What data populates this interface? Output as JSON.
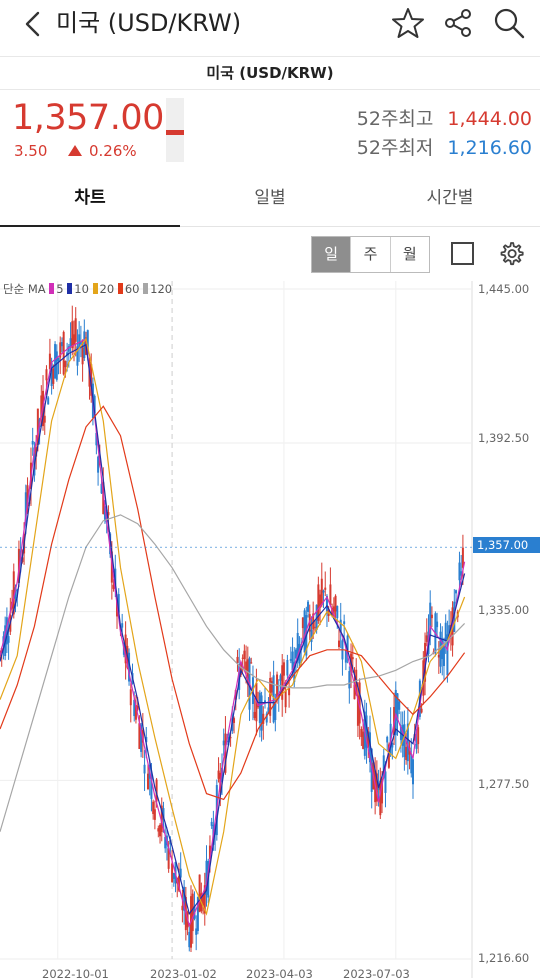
{
  "header": {
    "title": "미국 (USD/KRW)",
    "subtitle": "미국 (USD/KRW)",
    "icons": [
      "back-chevron-icon",
      "star-icon",
      "share-icon",
      "search-icon"
    ]
  },
  "quote": {
    "price": "1,357.00",
    "change": "3.50",
    "change_pct": "0.26%",
    "high_label": "52주최고",
    "high_value": "1,444.00",
    "low_label": "52주최저",
    "low_value": "1,216.60",
    "up_color": "#d63a30",
    "down_color": "#2a7fd0"
  },
  "tabs": [
    {
      "label": "차트",
      "active": true
    },
    {
      "label": "일별",
      "active": false
    },
    {
      "label": "시간별",
      "active": false
    }
  ],
  "period_buttons": [
    "일",
    "주",
    "월"
  ],
  "selected_period": "일",
  "chart": {
    "legend_title": "단순 MA",
    "ma": [
      {
        "label": "5",
        "color": "#d12fb8"
      },
      {
        "label": "10",
        "color": "#1f2fa6"
      },
      {
        "label": "20",
        "color": "#e3a51a"
      },
      {
        "label": "60",
        "color": "#e23a1a"
      },
      {
        "label": "120",
        "color": "#a6a6a6"
      }
    ],
    "y_ticks": [
      "1,445.00",
      "1,392.50",
      "1,335.00",
      "1,277.50",
      "1,216.60"
    ],
    "current_value": "1,357.00",
    "x_ticks": [
      "2022-10-01",
      "2023-01-02",
      "2023-04-03",
      "2023-07-03"
    ]
  },
  "chart_data": {
    "type": "line",
    "title": "",
    "xlabel": "",
    "ylabel": "",
    "ylim": [
      1216.6,
      1445.0
    ],
    "y_ticks": [
      1445.0,
      1392.5,
      1335.0,
      1277.5,
      1216.6
    ],
    "x_ticks": [
      "2022-10-01",
      "2023-01-02",
      "2023-04-03",
      "2023-07-03"
    ],
    "current": 1357.0,
    "grid": true,
    "legend": "top-left",
    "series": [
      {
        "name": "5",
        "x": [
          "2022-08-15",
          "2022-08-29",
          "2022-09-12",
          "2022-09-26",
          "2022-10-10",
          "2022-10-24",
          "2022-11-07",
          "2022-11-21",
          "2022-12-05",
          "2022-12-19",
          "2023-01-02",
          "2023-01-16",
          "2023-01-30",
          "2023-02-13",
          "2023-02-27",
          "2023-03-13",
          "2023-03-27",
          "2023-04-10",
          "2023-04-24",
          "2023-05-08",
          "2023-05-22",
          "2023-06-05",
          "2023-06-19",
          "2023-07-03",
          "2023-07-17",
          "2023-07-31",
          "2023-08-14",
          "2023-08-28"
        ],
        "values": [
          1320,
          1345,
          1390,
          1420,
          1425,
          1428,
          1375,
          1328,
          1300,
          1272,
          1250,
          1228,
          1242,
          1285,
          1318,
          1303,
          1305,
          1315,
          1332,
          1340,
          1325,
          1300,
          1270,
          1300,
          1285,
          1330,
          1322,
          1352
        ]
      },
      {
        "name": "10",
        "x": [
          "2022-08-15",
          "2022-08-29",
          "2022-09-12",
          "2022-09-26",
          "2022-10-10",
          "2022-10-24",
          "2022-11-07",
          "2022-11-21",
          "2022-12-05",
          "2022-12-19",
          "2023-01-02",
          "2023-01-16",
          "2023-01-30",
          "2023-02-13",
          "2023-02-27",
          "2023-03-13",
          "2023-03-27",
          "2023-04-10",
          "2023-04-24",
          "2023-05-08",
          "2023-05-22",
          "2023-06-05",
          "2023-06-19",
          "2023-07-03",
          "2023-07-17",
          "2023-07-31",
          "2023-08-14",
          "2023-08-28"
        ],
        "values": [
          1318,
          1340,
          1385,
          1418,
          1423,
          1426,
          1380,
          1330,
          1305,
          1275,
          1255,
          1232,
          1240,
          1280,
          1315,
          1304,
          1304,
          1314,
          1330,
          1337,
          1326,
          1305,
          1275,
          1295,
          1290,
          1327,
          1325,
          1348
        ]
      },
      {
        "name": "20",
        "x": [
          "2022-08-15",
          "2022-08-29",
          "2022-09-12",
          "2022-09-26",
          "2022-10-10",
          "2022-10-24",
          "2022-11-07",
          "2022-11-21",
          "2022-12-05",
          "2022-12-19",
          "2023-01-02",
          "2023-01-16",
          "2023-01-30",
          "2023-02-13",
          "2023-02-27",
          "2023-03-13",
          "2023-03-27",
          "2023-04-10",
          "2023-04-24",
          "2023-05-08",
          "2023-05-22",
          "2023-06-05",
          "2023-06-19",
          "2023-07-03",
          "2023-07-17",
          "2023-07-31",
          "2023-08-14",
          "2023-08-28"
        ],
        "values": [
          1305,
          1320,
          1360,
          1400,
          1420,
          1428,
          1400,
          1350,
          1318,
          1292,
          1268,
          1245,
          1232,
          1260,
          1300,
          1312,
          1305,
          1310,
          1325,
          1335,
          1330,
          1318,
          1290,
          1285,
          1300,
          1318,
          1325,
          1340
        ]
      },
      {
        "name": "60",
        "x": [
          "2022-08-15",
          "2022-08-29",
          "2022-09-12",
          "2022-09-26",
          "2022-10-10",
          "2022-10-24",
          "2022-11-07",
          "2022-11-21",
          "2022-12-05",
          "2022-12-19",
          "2023-01-02",
          "2023-01-16",
          "2023-01-30",
          "2023-02-13",
          "2023-02-27",
          "2023-03-13",
          "2023-03-27",
          "2023-04-10",
          "2023-04-24",
          "2023-05-08",
          "2023-05-22",
          "2023-06-05",
          "2023-06-19",
          "2023-07-03",
          "2023-07-17",
          "2023-07-31",
          "2023-08-14",
          "2023-08-28"
        ],
        "values": [
          1295,
          1310,
          1330,
          1358,
          1380,
          1398,
          1405,
          1395,
          1370,
          1340,
          1312,
          1290,
          1273,
          1271,
          1280,
          1295,
          1304,
          1313,
          1320,
          1322,
          1322,
          1320,
          1313,
          1306,
          1300,
          1306,
          1313,
          1321
        ]
      },
      {
        "name": "120",
        "x": [
          "2022-08-15",
          "2022-08-29",
          "2022-09-12",
          "2022-09-26",
          "2022-10-10",
          "2022-10-24",
          "2022-11-07",
          "2022-11-21",
          "2022-12-05",
          "2022-12-19",
          "2023-01-02",
          "2023-01-16",
          "2023-01-30",
          "2023-02-13",
          "2023-02-27",
          "2023-03-13",
          "2023-03-27",
          "2023-04-10",
          "2023-04-24",
          "2023-05-08",
          "2023-05-22",
          "2023-06-05",
          "2023-06-19",
          "2023-07-03",
          "2023-07-17",
          "2023-07-31",
          "2023-08-14",
          "2023-08-28"
        ],
        "values": [
          1260,
          1280,
          1300,
          1320,
          1340,
          1357,
          1366,
          1368,
          1365,
          1358,
          1350,
          1340,
          1330,
          1322,
          1316,
          1312,
          1310,
          1309,
          1309,
          1310,
          1310,
          1312,
          1313,
          1315,
          1318,
          1320,
          1325,
          1331
        ]
      },
      {
        "name": "5",
        "x": [],
        "values": [],
        "color": "#d12fb8"
      }
    ]
  }
}
